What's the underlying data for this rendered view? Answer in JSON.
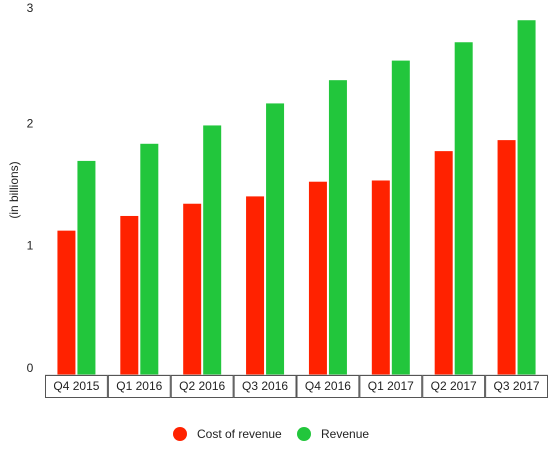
{
  "chart_data": {
    "type": "bar",
    "categories": [
      "Q4 2015",
      "Q1 2016",
      "Q2 2016",
      "Q3 2016",
      "Q4 2016",
      "Q1 2017",
      "Q2 2017",
      "Q3 2017"
    ],
    "series": [
      {
        "name": "Cost of revenue",
        "color": "#ff2200",
        "values": [
          1.18,
          1.3,
          1.4,
          1.46,
          1.58,
          1.59,
          1.83,
          1.92
        ]
      },
      {
        "name": "Revenue",
        "color": "#22c63c",
        "values": [
          1.75,
          1.89,
          2.04,
          2.22,
          2.41,
          2.57,
          2.72,
          2.9
        ]
      }
    ],
    "ylabel": "(in billions)",
    "ylim": [
      0,
      3
    ],
    "yticks": [
      0,
      1,
      2,
      3
    ],
    "grid": false,
    "legend_position": "bottom-center"
  }
}
